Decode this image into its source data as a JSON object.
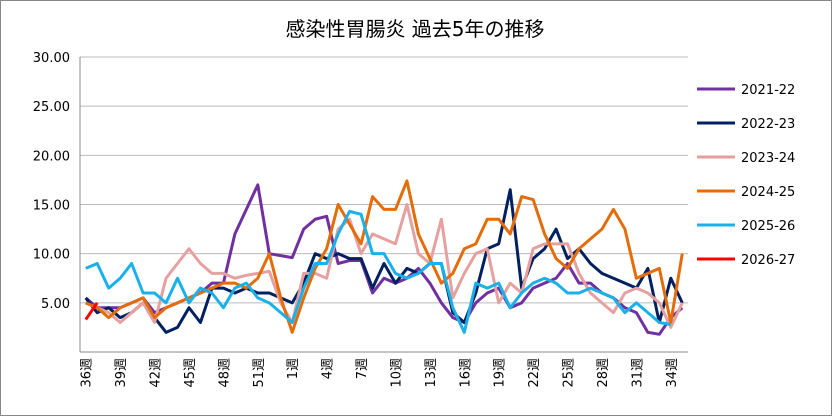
{
  "chart_data": {
    "type": "line",
    "title": "感染性胃腸炎 過去5年の推移",
    "categories": [
      "36週",
      null,
      null,
      "39週",
      null,
      null,
      "42週",
      null,
      null,
      "45週",
      null,
      null,
      "48週",
      null,
      null,
      "51週",
      null,
      null,
      "1週",
      null,
      null,
      "4週",
      null,
      null,
      "7週",
      null,
      null,
      "10週",
      null,
      null,
      "13週",
      null,
      null,
      "16週",
      null,
      null,
      "19週",
      null,
      null,
      "22週",
      null,
      null,
      "25週",
      null,
      null,
      "28週",
      null,
      null,
      "31週",
      null,
      null,
      "34週",
      null
    ],
    "ylim": [
      0,
      30
    ],
    "yticks": [
      {
        "value": 5,
        "label": "5.00"
      },
      {
        "value": 10,
        "label": "10.00"
      },
      {
        "value": 15,
        "label": "15.00"
      },
      {
        "value": 20,
        "label": "20.00"
      },
      {
        "value": 25,
        "label": "25.00"
      },
      {
        "value": 30,
        "label": "30.00"
      }
    ],
    "grid": true,
    "legend": "right",
    "series": [
      {
        "name": "2021-22",
        "color": "#7030a0",
        "values": [
          5.5,
          4.5,
          4.5,
          4.5,
          5.0,
          5.5,
          4.0,
          4.5,
          5.0,
          5.5,
          6.0,
          7.0,
          7.0,
          12.0,
          14.5,
          17.0,
          10.0,
          9.8,
          9.6,
          12.5,
          13.5,
          13.8,
          9.0,
          9.3,
          9.3,
          6.0,
          7.5,
          7.0,
          7.5,
          8.5,
          7.0,
          5.0,
          3.5,
          3.0,
          5.0,
          6.0,
          6.5,
          4.5,
          5.0,
          6.5,
          7.0,
          7.5,
          9.0,
          7.0,
          7.0,
          6.0,
          5.5,
          4.5,
          4.0,
          2.0,
          1.8,
          3.5,
          4.5
        ]
      },
      {
        "name": "2022-23",
        "color": "#002060",
        "values": [
          5.5,
          4.0,
          4.5,
          3.5,
          4.0,
          5.0,
          3.5,
          2.0,
          2.5,
          4.5,
          3.0,
          6.5,
          6.5,
          6.0,
          6.5,
          6.0,
          6.0,
          5.5,
          5.0,
          7.0,
          10.0,
          9.5,
          10.0,
          9.5,
          9.5,
          6.5,
          9.0,
          7.0,
          8.5,
          8.0,
          9.0,
          9.0,
          4.0,
          3.0,
          6.0,
          10.5,
          11.0,
          16.5,
          6.5,
          9.5,
          10.5,
          12.5,
          9.5,
          10.5,
          9.0,
          8.0,
          7.5,
          7.0,
          6.5,
          8.5,
          3.0,
          7.5,
          5.0
        ]
      },
      {
        "name": "2023-24",
        "color": "#e6a0a0",
        "values": [
          5.0,
          4.5,
          4.0,
          3.0,
          4.0,
          5.0,
          3.0,
          7.5,
          9.0,
          10.5,
          9.0,
          8.0,
          8.0,
          7.5,
          7.8,
          8.0,
          8.2,
          5.0,
          3.0,
          8.0,
          8.0,
          7.5,
          12.5,
          13.5,
          10.0,
          12.0,
          11.5,
          11.0,
          15.0,
          10.0,
          9.0,
          13.5,
          5.5,
          8.0,
          10.0,
          10.5,
          5.0,
          7.0,
          6.0,
          10.5,
          11.0,
          11.0,
          11.0,
          8.0,
          6.0,
          5.0,
          4.0,
          6.0,
          6.5,
          6.0,
          5.0,
          2.5,
          5.0
        ]
      },
      {
        "name": "2024-25",
        "color": "#e46c0a",
        "values": [
          5.0,
          4.5,
          3.5,
          4.5,
          5.0,
          5.5,
          3.5,
          4.5,
          5.0,
          5.5,
          6.0,
          6.5,
          7.0,
          7.0,
          6.5,
          7.5,
          10.0,
          5.5,
          2.0,
          5.5,
          8.5,
          10.5,
          15.0,
          13.0,
          11.0,
          15.8,
          14.5,
          14.5,
          17.4,
          12.0,
          9.5,
          7.0,
          8.0,
          10.5,
          11.0,
          13.5,
          13.5,
          12.0,
          15.8,
          15.5,
          12.0,
          9.5,
          8.5,
          10.5,
          11.5,
          12.5,
          14.5,
          12.5,
          7.5,
          8.0,
          8.5,
          3.0,
          10.0
        ]
      },
      {
        "name": "2025-26",
        "color": "#1ab0e8",
        "values": [
          8.5,
          9.0,
          6.5,
          7.5,
          9.0,
          6.0,
          6.0,
          5.0,
          7.5,
          5.0,
          6.5,
          6.0,
          4.5,
          6.5,
          7.0,
          5.5,
          5.0,
          4.0,
          3.0,
          6.5,
          9.0,
          9.0,
          12.0,
          14.3,
          14.0,
          10.0,
          10.0,
          8.0,
          7.5,
          8.0,
          9.0,
          9.0,
          4.5,
          2.0,
          7.0,
          6.5,
          7.0,
          4.5,
          6.0,
          7.0,
          7.5,
          7.0,
          6.0,
          6.0,
          6.5,
          6.0,
          5.5,
          4.0,
          5.0,
          4.0,
          3.0,
          2.8,
          null
        ]
      },
      {
        "name": "2026-27",
        "color": "#ff0000",
        "values": [
          3.3,
          5.0,
          null,
          null,
          null,
          null,
          null,
          null,
          null,
          null,
          null,
          null,
          null,
          null,
          null,
          null,
          null,
          null,
          null,
          null,
          null,
          null,
          null,
          null,
          null,
          null,
          null,
          null,
          null,
          null,
          null,
          null,
          null,
          null,
          null,
          null,
          null,
          null,
          null,
          null,
          null,
          null,
          null,
          null,
          null,
          null,
          null,
          null,
          null,
          null,
          null,
          null,
          null
        ]
      }
    ]
  }
}
